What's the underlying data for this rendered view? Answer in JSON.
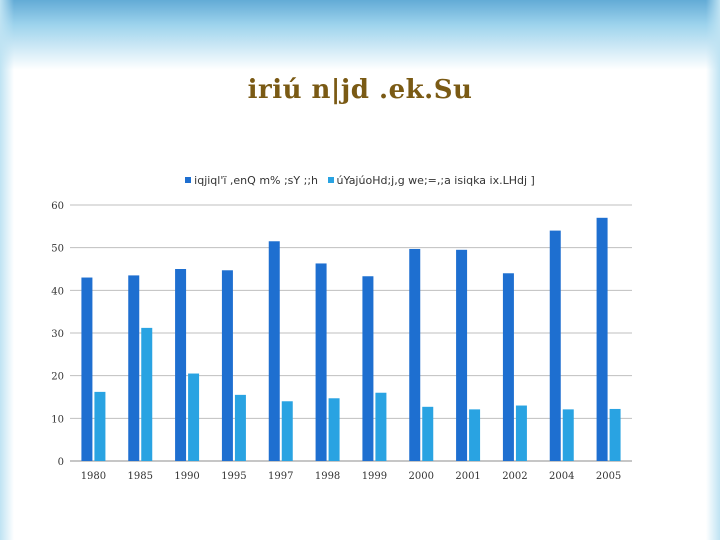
{
  "title": "iriú n|jd .ek.Su",
  "colors": {
    "series1": "#1e6fd0",
    "series2": "#29a3e2",
    "grid": "#bfbfbf",
    "title": "#7a5a14"
  },
  "chart_data": {
    "type": "bar",
    "title": "iriú n|jd .ek.Su",
    "categories": [
      "1980",
      "1985",
      "1990",
      "1995",
      "1997",
      "1998",
      "1999",
      "2000",
      "2001",
      "2002",
      "2004",
      "2005"
    ],
    "series": [
      {
        "name": "iqjiql'ï ,enQ m% ;sY ;;h",
        "color": "#1e6fd0",
        "values": [
          43,
          43.5,
          45,
          44.7,
          51.5,
          46.3,
          43.3,
          49.7,
          49.5,
          44,
          54,
          57
        ]
      },
      {
        "name": "úYajúoHd;j,g we;=,;a isiqka ix.LHdj ]",
        "color": "#29a3e2",
        "values": [
          16.2,
          31.2,
          20.5,
          15.5,
          14,
          14.7,
          16,
          12.7,
          12.1,
          13,
          12.1,
          12.2
        ]
      }
    ],
    "yticks": [
      "0",
      "10",
      "20",
      "30",
      "40",
      "50",
      "60"
    ],
    "ylim": [
      0,
      60
    ],
    "grid": true,
    "legend": "top"
  }
}
